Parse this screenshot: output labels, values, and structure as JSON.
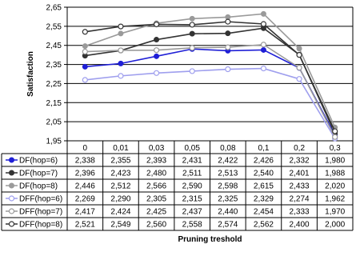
{
  "chart_data": {
    "type": "line",
    "title": "",
    "xlabel": "Pruning treshold",
    "ylabel": "Satisfaction",
    "categories": [
      "0",
      "0,01",
      "0,03",
      "0,05",
      "0,08",
      "0,1",
      "0,2",
      "0,3"
    ],
    "ylim": [
      1.95,
      2.65
    ],
    "yticks": [
      "1,95",
      "2,05",
      "2,15",
      "2,25",
      "2,35",
      "2,45",
      "2,55",
      "2,65"
    ],
    "grid": true,
    "legend": "data-table",
    "series": [
      {
        "name": "DF(hop=6)",
        "color": "#1f1fd6",
        "marker": "filled",
        "values": [
          2.338,
          2.355,
          2.393,
          2.431,
          2.422,
          2.426,
          2.332,
          1.98
        ],
        "labels": [
          "2,338",
          "2,355",
          "2,393",
          "2,431",
          "2,422",
          "2,426",
          "2,332",
          "1,980"
        ]
      },
      {
        "name": "DF(hop=7)",
        "color": "#333333",
        "marker": "filled",
        "values": [
          2.396,
          2.423,
          2.48,
          2.511,
          2.513,
          2.54,
          2.401,
          1.988
        ],
        "labels": [
          "2,396",
          "2,423",
          "2,480",
          "2,511",
          "2,513",
          "2,540",
          "2,401",
          "1,988"
        ]
      },
      {
        "name": "DF(hop=8)",
        "color": "#9a9a9a",
        "marker": "filled",
        "values": [
          2.446,
          2.512,
          2.566,
          2.59,
          2.598,
          2.615,
          2.433,
          2.02
        ],
        "labels": [
          "2,446",
          "2,512",
          "2,566",
          "2,590",
          "2,598",
          "2,615",
          "2,433",
          "2,020"
        ]
      },
      {
        "name": "DFF(hop=6)",
        "color": "#9f9fee",
        "marker": "open",
        "values": [
          2.269,
          2.29,
          2.305,
          2.315,
          2.325,
          2.329,
          2.274,
          1.962
        ],
        "labels": [
          "2,269",
          "2,290",
          "2,305",
          "2,315",
          "2,325",
          "2,329",
          "2,274",
          "1,962"
        ]
      },
      {
        "name": "DFF(hop=7)",
        "color": "#9a9a9a",
        "marker": "open",
        "values": [
          2.417,
          2.424,
          2.425,
          2.437,
          2.44,
          2.454,
          2.333,
          1.97
        ],
        "labels": [
          "2,417",
          "2,424",
          "2,425",
          "2,437",
          "2,440",
          "2,454",
          "2,333",
          "1,970"
        ]
      },
      {
        "name": "DFF(hop=8)",
        "color": "#333333",
        "marker": "open",
        "values": [
          2.521,
          2.549,
          2.56,
          2.558,
          2.574,
          2.562,
          2.4,
          2.0
        ],
        "labels": [
          "2,521",
          "2,549",
          "2,560",
          "2,558",
          "2,574",
          "2,562",
          "2,400",
          "2,000"
        ]
      }
    ]
  }
}
